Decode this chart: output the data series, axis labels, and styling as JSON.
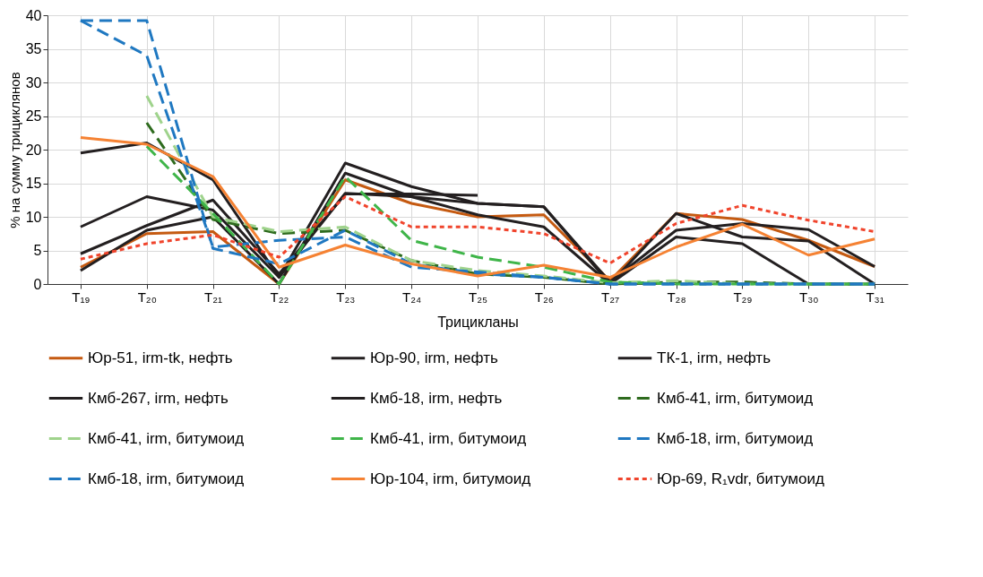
{
  "chart_data": {
    "type": "line",
    "xlabel": "Трицикланы",
    "ylabel": "% на сумму трициклянов",
    "categories": [
      "T₁₉",
      "T₂₀",
      "T₂₁",
      "T₂₂",
      "T₂₃",
      "T₂₄",
      "T₂₅",
      "T₂₆",
      "T₂₇",
      "T₂₈",
      "T₂₉",
      "T₃₀",
      "T₃₁"
    ],
    "ylim": [
      0,
      40
    ],
    "yticks": [
      0,
      5,
      10,
      15,
      20,
      25,
      30,
      35,
      40
    ],
    "grid": true,
    "legend": "bottom",
    "line_style": "solid",
    "series": [
      {
        "name": "Юр-51, irm-tk, нефть",
        "color": "#c55a11",
        "values": [
          2.5,
          7.5,
          7.8,
          0,
          15.5,
          12,
          10,
          10.3,
          0.5,
          10.5,
          9.6,
          6.5,
          2.6
        ]
      },
      {
        "name": "Юр-90, irm, нефть",
        "color": "#231f20",
        "values": [
          4.5,
          8.7,
          12.5,
          1.5,
          13.4,
          13.4,
          13.2,
          null,
          null,
          null,
          null,
          null,
          null
        ]
      },
      {
        "name": "ТК-1, irm, нефть",
        "color": "#231f20",
        "values": [
          19.5,
          21,
          15.5,
          1,
          18,
          14.5,
          12,
          11.5,
          0,
          10.5,
          7,
          6.4,
          0
        ]
      },
      {
        "name": "Кмб-267, irm, нефть",
        "color": "#231f20",
        "values": [
          2,
          8,
          10,
          0,
          16.5,
          13,
          10.3,
          8.5,
          0,
          7,
          6,
          0,
          0
        ]
      },
      {
        "name": "Кмб-18, irm, нефть",
        "color": "#231f20",
        "values": [
          8.5,
          13,
          11,
          1,
          13.5,
          13,
          12,
          11.5,
          0.3,
          8,
          9,
          8.1,
          2.6
        ]
      },
      {
        "name": "Кмб-41, irm, битумоид",
        "color": "#2e6b1e",
        "line_style": "dashed",
        "values": [
          null,
          24,
          9.6,
          7.5,
          8,
          3.5,
          1.5,
          1,
          0,
          0.3,
          0.3,
          0,
          0
        ]
      },
      {
        "name": "Кмб-41, irm, битумоид",
        "color": "#9fd38c",
        "line_style": "dashed",
        "values": [
          null,
          28,
          10,
          7.8,
          8.5,
          3.5,
          2,
          1.2,
          0.2,
          0.5,
          0,
          0,
          0
        ]
      },
      {
        "name": "Кмб-41, irm, битумоид",
        "color": "#3fb549",
        "line_style": "dashed",
        "values": [
          null,
          20.5,
          10.5,
          0,
          16,
          6.5,
          4,
          2.5,
          0.3,
          0,
          0,
          0,
          0
        ]
      },
      {
        "name": "Кмб-18, irm, битумоид",
        "color": "#1f78c1",
        "line_style": "dashed",
        "values": [
          39.2,
          39.2,
          5.3,
          3,
          8,
          3,
          1.5,
          1,
          0,
          0,
          0,
          0,
          0
        ]
      },
      {
        "name": "Кмб-18, irm, битумоид",
        "color": "#1f78c1",
        "line_style": "dashed",
        "values": [
          39.2,
          34,
          5.5,
          6.5,
          7,
          2.5,
          1.8,
          1,
          0,
          0,
          0,
          0,
          0
        ]
      },
      {
        "name": "Юр-104, irm, битумоид",
        "color": "#f58233",
        "values": [
          21.8,
          20.8,
          16,
          2.5,
          5.8,
          3,
          1.2,
          2.8,
          1,
          5.5,
          8.9,
          4.3,
          6.7
        ]
      },
      {
        "name": "Юр-69, R₁vdr, битумоид",
        "color": "#f0442c",
        "line_style": "dotted",
        "values": [
          3.7,
          6,
          7.3,
          4,
          13,
          8.5,
          8.5,
          7.5,
          3.1,
          9,
          11.7,
          9.5,
          7.8
        ]
      }
    ]
  }
}
